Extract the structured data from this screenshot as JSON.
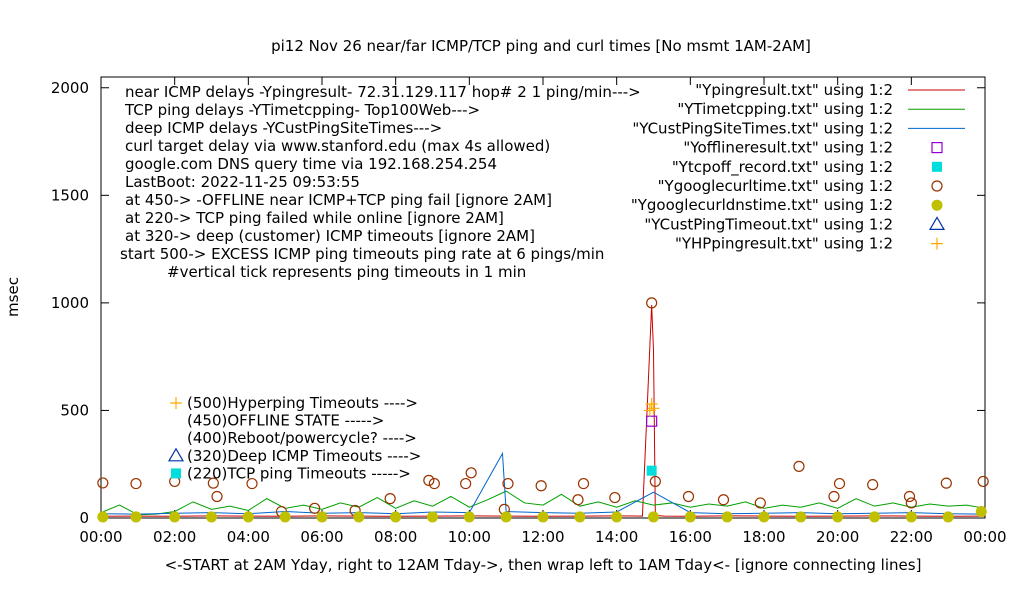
{
  "chart_data": {
    "type": "line",
    "title": "pi12 Nov 26  near/far ICMP/TCP ping and curl times [No msmt 1AM-2AM]",
    "ylabel": "msec",
    "xlabel": "<-START at 2AM Yday, right to 12AM Tday->, then wrap left to 1AM Tday<- [ignore connecting lines]",
    "xlim": [
      0,
      24
    ],
    "ylim": [
      0,
      2050
    ],
    "x_ticks": [
      "00:00",
      "02:00",
      "04:00",
      "06:00",
      "08:00",
      "10:00",
      "12:00",
      "14:00",
      "16:00",
      "18:00",
      "20:00",
      "22:00",
      "00:00"
    ],
    "y_ticks": [
      0,
      500,
      1000,
      1500,
      2000
    ],
    "grid": false,
    "legend_position": "top-right",
    "info_lines": [
      "near ICMP delays -Ypingresult- 72.31.129.117 hop# 2  1 ping/min--->",
      "TCP ping delays -YTimetcpping- Top100Web--->",
      "deep ICMP delays -YCustPingSiteTimes--->",
      "curl target delay via www.stanford.edu (max 4s allowed)",
      "google.com DNS query time via 192.168.254.254",
      "LastBoot: 2022-11-25 09:53:55",
      "at 450-> -OFFLINE near ICMP+TCP ping fail [ignore 2AM]",
      "at 220-> TCP ping failed while online [ignore 2AM]",
      "at 320-> deep (customer) ICMP timeouts [ignore 2AM]",
      "start 500-> EXCESS ICMP ping timeouts ping rate at 6 pings/min",
      "#vertical tick represents ping timeouts in 1 min"
    ],
    "marker_notes": [
      "(500)Hyperping Timeouts ---->",
      "(450)OFFLINE STATE ----->",
      "(400)Reboot/powercycle? ---->",
      "(320)Deep ICMP Timeouts ---->",
      "(220)TCP ping Timeouts ----->"
    ],
    "series": [
      {
        "name": "\"Ypingresult.txt\" using 1:2",
        "style": "line",
        "color": "#cc0000",
        "x": [
          0,
          1,
          2,
          3,
          4,
          5,
          6,
          7,
          8,
          9,
          10,
          11,
          12,
          13,
          14,
          14.7,
          14.95,
          15.0,
          15.05,
          15.3,
          16,
          17,
          18,
          19,
          20,
          21,
          22,
          23,
          24
        ],
        "y": [
          8,
          9,
          8,
          10,
          9,
          8,
          10,
          9,
          8,
          9,
          10,
          9,
          8,
          9,
          10,
          9,
          990,
          780,
          12,
          9,
          8,
          10,
          9,
          8,
          9,
          10,
          9,
          8,
          9
        ]
      },
      {
        "name": "\"YTimetcpping.txt\" using 1:2",
        "style": "line",
        "color": "#00a000",
        "x": [
          0,
          0.5,
          1,
          1.5,
          2,
          2.5,
          3,
          3.5,
          4,
          4.5,
          5,
          5.5,
          6,
          6.5,
          7,
          7.5,
          8,
          8.5,
          9,
          9.5,
          10,
          10.5,
          11,
          11.5,
          12,
          12.5,
          13,
          13.5,
          14,
          14.5,
          15,
          15.5,
          16,
          16.5,
          17,
          17.5,
          18,
          18.5,
          19,
          19.5,
          20,
          20.5,
          21,
          21.5,
          22,
          22.5,
          23,
          23.5,
          24
        ],
        "y": [
          25,
          60,
          15,
          18,
          30,
          75,
          40,
          55,
          35,
          90,
          45,
          60,
          40,
          70,
          50,
          95,
          45,
          80,
          55,
          100,
          50,
          85,
          125,
          70,
          60,
          110,
          55,
          75,
          50,
          80,
          60,
          70,
          50,
          65,
          55,
          75,
          45,
          60,
          50,
          70,
          45,
          90,
          55,
          70,
          50,
          65,
          55,
          60,
          45
        ]
      },
      {
        "name": "\"YCustPingSiteTimes.txt\" using 1:2",
        "style": "line",
        "color": "#0066cc",
        "x": [
          0,
          1,
          2,
          3,
          4,
          5,
          6,
          7,
          8,
          9,
          10,
          10.9,
          11,
          12,
          13,
          14,
          15,
          16,
          17,
          18,
          19,
          20,
          21,
          22,
          23,
          24
        ],
        "y": [
          20,
          18,
          22,
          25,
          20,
          30,
          22,
          25,
          20,
          28,
          25,
          300,
          30,
          25,
          22,
          28,
          120,
          25,
          20,
          22,
          25,
          20,
          22,
          25,
          20,
          18
        ]
      },
      {
        "name": "\"Yofflineresult.txt\" using 1:2",
        "style": "open-square",
        "color": "#9400d3",
        "x": [
          14.95
        ],
        "y": [
          450
        ]
      },
      {
        "name": "\"Ytcpoff_record.txt\" using 1:2",
        "style": "filled-square",
        "color": "#00dddd",
        "x": [
          14.95
        ],
        "y": [
          220
        ]
      },
      {
        "name": "\"Ygooglecurltime.txt\" using 1:2",
        "style": "open-circle",
        "color": "#993300",
        "x": [
          0.05,
          0.95,
          2.0,
          3.05,
          3.15,
          4.1,
          4.9,
          5.8,
          6.9,
          7.85,
          8.9,
          9.05,
          9.9,
          10.05,
          10.95,
          11.05,
          11.95,
          12.95,
          13.1,
          13.95,
          14.95,
          15.05,
          15.95,
          16.9,
          17.9,
          18.95,
          19.9,
          20.05,
          20.95,
          21.95,
          22.0,
          22.95,
          23.95
        ],
        "y": [
          163,
          160,
          170,
          162,
          100,
          160,
          30,
          45,
          35,
          90,
          175,
          160,
          160,
          210,
          40,
          160,
          150,
          85,
          160,
          95,
          1000,
          170,
          100,
          85,
          70,
          240,
          100,
          160,
          155,
          100,
          70,
          162,
          170
        ]
      },
      {
        "name": "\"Ygooglecurldnstime.txt\" using 1:2",
        "style": "filled-circle",
        "color": "#c0c000",
        "x": [
          0.05,
          0.95,
          2.0,
          3.0,
          4.0,
          5.0,
          6.0,
          7.0,
          8.0,
          9.0,
          10.0,
          11.0,
          12.0,
          13.0,
          14.0,
          15.0,
          16.0,
          17.0,
          18.0,
          19.0,
          20.0,
          21.0,
          22.0,
          23.0,
          23.9
        ],
        "y": [
          5,
          5,
          5,
          5,
          5,
          5,
          5,
          5,
          5,
          5,
          5,
          5,
          5,
          5,
          5,
          5,
          5,
          5,
          5,
          5,
          5,
          5,
          5,
          5,
          30
        ]
      },
      {
        "name": "\"YCustPingTimeout.txt\" using 1:2",
        "style": "open-triangle",
        "color": "#0033aa",
        "x": [],
        "y": []
      },
      {
        "name": "\"YHPpingresult.txt\" using 1:2",
        "style": "plus",
        "color": "#ffaa00",
        "x": [
          14.9,
          14.95,
          15.0
        ],
        "y": [
          500,
          530,
          510
        ]
      }
    ]
  }
}
